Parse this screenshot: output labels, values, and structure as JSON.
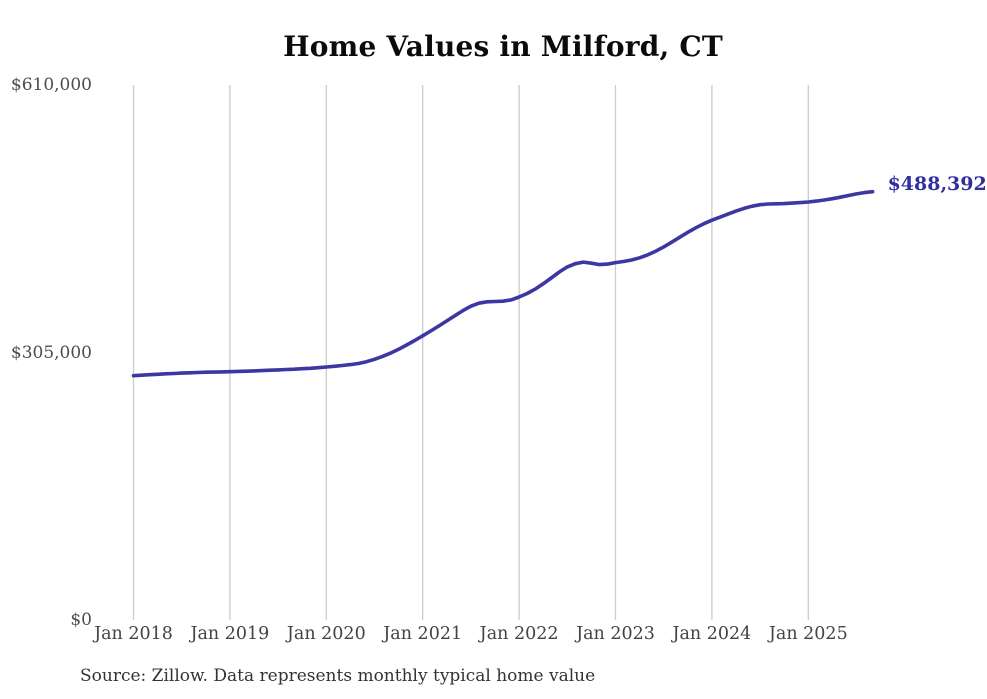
{
  "chart": {
    "title": "Home Values in Milford, CT",
    "end_label": "$488,392",
    "source_note": "Source: Zillow. Data represents monthly typical home value",
    "colors": {
      "line": "#3d38a1",
      "end_label_text": "#312e9e",
      "grid": "#cccccc",
      "axis_text": "#4d4d4d",
      "title_text": "#0b0b0b"
    }
  },
  "chart_data": {
    "type": "line",
    "title": "Home Values in Milford, CT",
    "xlabel": "",
    "ylabel": "",
    "ylim": [
      0,
      610000
    ],
    "grid": "vertical-yearly-gridlines",
    "legend_position": "none",
    "x_unit": "month",
    "start_month": "2018-01",
    "end_month": "2025-09",
    "end_value": 488392,
    "end_value_label": "$488,392",
    "y_ticks": [
      {
        "label": "$610,000",
        "value": 610000
      },
      {
        "label": "$305,000",
        "value": 305000
      },
      {
        "label": "$0",
        "value": 0
      }
    ],
    "x_ticks": [
      {
        "label": "Jan 2018",
        "month_index": 0
      },
      {
        "label": "Jan 2019",
        "month_index": 12
      },
      {
        "label": "Jan 2020",
        "month_index": 24
      },
      {
        "label": "Jan 2021",
        "month_index": 36
      },
      {
        "label": "Jan 2022",
        "month_index": 48
      },
      {
        "label": "Jan 2023",
        "month_index": 60
      },
      {
        "label": "Jan 2024",
        "month_index": 72
      },
      {
        "label": "Jan 2025",
        "month_index": 84
      }
    ],
    "series": [
      {
        "name": "Typical home value",
        "values": [
          278500,
          279100,
          279700,
          280200,
          280700,
          281100,
          281500,
          281900,
          282200,
          282500,
          282700,
          282900,
          283100,
          283400,
          283700,
          284000,
          284400,
          284800,
          285200,
          285600,
          286000,
          286500,
          287000,
          287700,
          288500,
          289300,
          290200,
          291200,
          292500,
          294500,
          297200,
          300500,
          304300,
          308700,
          313500,
          318700,
          324000,
          329500,
          335200,
          341000,
          347000,
          352800,
          357800,
          361200,
          362800,
          363200,
          363500,
          365000,
          368300,
          372300,
          377300,
          383300,
          390000,
          396800,
          402600,
          406300,
          408100,
          406800,
          405200,
          405800,
          407500,
          408800,
          410500,
          413000,
          416300,
          420500,
          425400,
          430800,
          436500,
          442000,
          447200,
          451800,
          455800,
          459300,
          462800,
          466200,
          469300,
          471800,
          473500,
          474300,
          474600,
          474800,
          475300,
          475900,
          476600,
          477600,
          478900,
          480400,
          482100,
          484000,
          485800,
          487300,
          488392
        ]
      }
    ]
  }
}
